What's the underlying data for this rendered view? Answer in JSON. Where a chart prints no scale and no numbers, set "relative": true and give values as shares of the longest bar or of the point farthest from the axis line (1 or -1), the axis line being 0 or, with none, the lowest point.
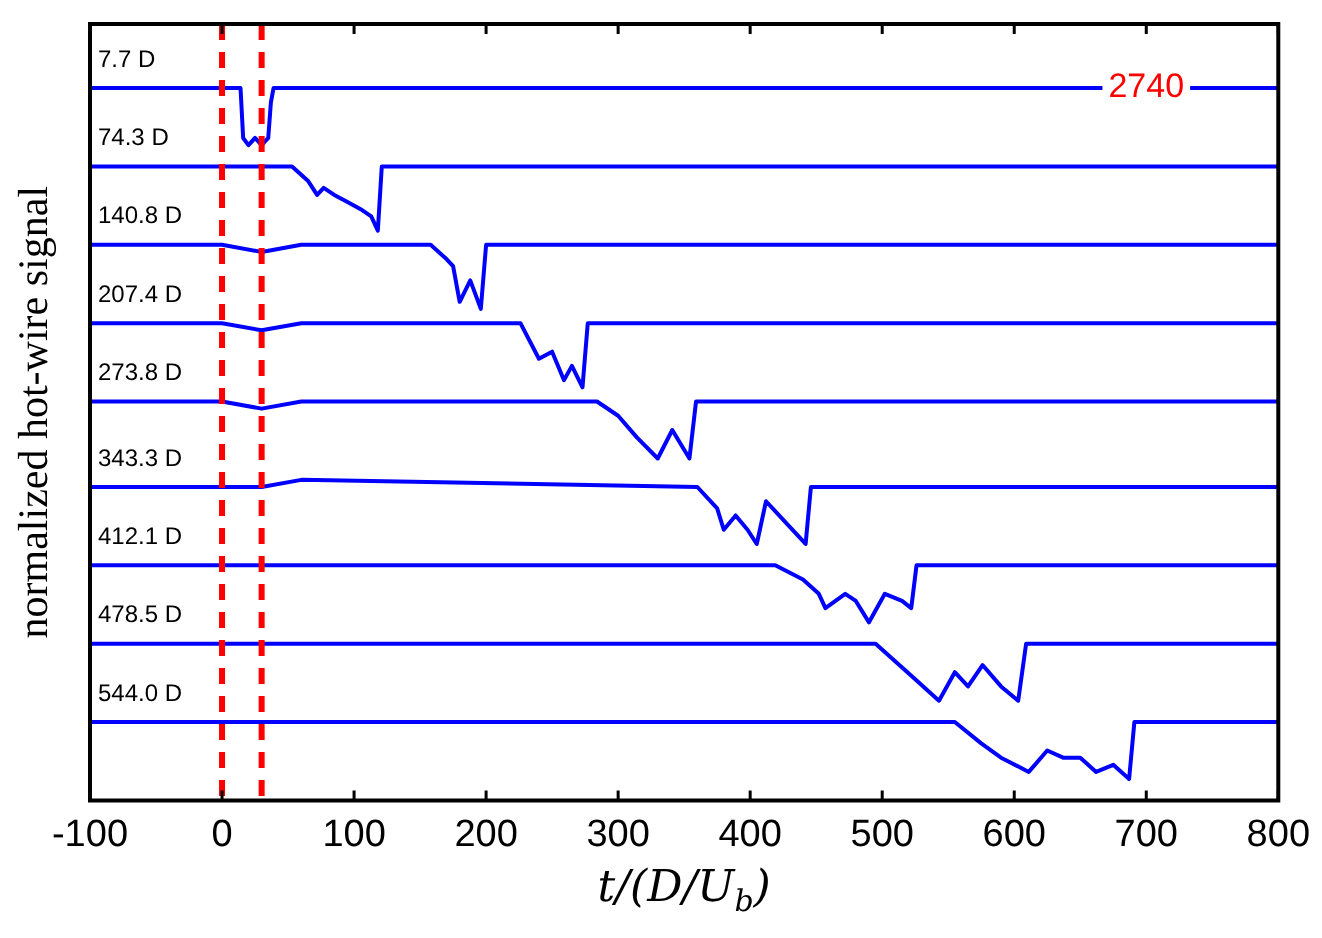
{
  "chart_data": {
    "type": "line",
    "xlabel": "t/(D/U$_{b}$)",
    "ylabel": "normalized hot-wire signal",
    "relative": true,
    "xlim": [
      -100,
      800
    ],
    "xticks": [
      -100,
      0,
      100,
      200,
      300,
      400,
      500,
      600,
      700,
      800
    ],
    "marker": "none",
    "line_style": "solid",
    "series": [
      {
        "name": "7.7 D",
        "color": "#0000ff",
        "x": [
          -100,
          14,
          16,
          20,
          25,
          30,
          35,
          37,
          39,
          800
        ],
        "values": [
          1,
          1,
          0.93,
          0.92,
          0.93,
          0.92,
          0.93,
          0.98,
          1,
          1
        ]
      },
      {
        "name": "74.3 D",
        "color": "#0000ff",
        "x": [
          -100,
          0,
          30,
          53,
          65,
          72,
          77,
          85,
          95,
          105,
          113,
          118,
          121,
          125,
          800
        ],
        "values": [
          0.89,
          0.89,
          0.89,
          0.89,
          0.87,
          0.85,
          0.86,
          0.85,
          0.84,
          0.83,
          0.82,
          0.8,
          0.89,
          0.89,
          0.89
        ]
      },
      {
        "name": "140.8 D",
        "color": "#0000ff",
        "x": [
          -100,
          0,
          30,
          60,
          100,
          140,
          158,
          170,
          175,
          180,
          188,
          196,
          200,
          203,
          800
        ],
        "values": [
          0.78,
          0.78,
          0.77,
          0.78,
          0.78,
          0.78,
          0.78,
          0.76,
          0.75,
          0.7,
          0.73,
          0.69,
          0.78,
          0.78,
          0.78
        ]
      },
      {
        "name": "207.4 D",
        "color": "#0000ff",
        "x": [
          -100,
          0,
          30,
          60,
          200,
          226,
          240,
          250,
          259,
          265,
          273,
          277,
          800
        ],
        "values": [
          0.67,
          0.67,
          0.66,
          0.67,
          0.67,
          0.67,
          0.62,
          0.63,
          0.59,
          0.61,
          0.58,
          0.67,
          0.67
        ]
      },
      {
        "name": "273.8 D",
        "color": "#0000ff",
        "x": [
          -100,
          0,
          30,
          60,
          284,
          300,
          314,
          330,
          341,
          354,
          359,
          800
        ],
        "values": [
          0.56,
          0.56,
          0.55,
          0.56,
          0.56,
          0.54,
          0.51,
          0.48,
          0.52,
          0.48,
          0.56,
          0.56
        ]
      },
      {
        "name": "343.3 D",
        "color": "#0000ff",
        "x": [
          -100,
          0,
          30,
          60,
          360,
          375,
          380,
          389,
          398,
          405,
          412,
          427,
          442,
          446,
          800
        ],
        "values": [
          0.44,
          0.44,
          0.44,
          0.45,
          0.44,
          0.41,
          0.38,
          0.4,
          0.38,
          0.36,
          0.42,
          0.39,
          0.36,
          0.44,
          0.44
        ]
      },
      {
        "name": "412.1 D",
        "color": "#0000ff",
        "x": [
          -100,
          0,
          60,
          419,
          440,
          452,
          457,
          472,
          480,
          490,
          502,
          515,
          522,
          526,
          800
        ],
        "values": [
          0.33,
          0.33,
          0.33,
          0.33,
          0.31,
          0.29,
          0.27,
          0.29,
          0.28,
          0.25,
          0.29,
          0.28,
          0.27,
          0.33,
          0.33
        ]
      },
      {
        "name": "478.5 D",
        "color": "#0000ff",
        "x": [
          -100,
          0,
          60,
          495,
          525,
          543,
          555,
          565,
          576,
          590,
          603,
          609,
          800
        ],
        "values": [
          0.22,
          0.22,
          0.22,
          0.22,
          0.17,
          0.14,
          0.18,
          0.16,
          0.19,
          0.16,
          0.14,
          0.22,
          0.22
        ]
      },
      {
        "name": "544.0 D",
        "color": "#0000ff",
        "x": [
          -100,
          0,
          60,
          555,
          575,
          590,
          611,
          625,
          637,
          650,
          662,
          675,
          687,
          691,
          800
        ],
        "values": [
          0.11,
          0.11,
          0.11,
          0.11,
          0.08,
          0.06,
          0.04,
          0.07,
          0.06,
          0.06,
          0.04,
          0.05,
          0.03,
          0.11,
          0.11
        ]
      }
    ],
    "ref_lines": [
      {
        "axis": "x",
        "value": 0,
        "color": "#ff0000",
        "line_style": "dashed"
      },
      {
        "axis": "x",
        "value": 30,
        "color": "#ff0000",
        "line_style": "dashed"
      }
    ],
    "annotations": [
      {
        "text": "2740",
        "x": 700,
        "y": 1
      }
    ]
  }
}
